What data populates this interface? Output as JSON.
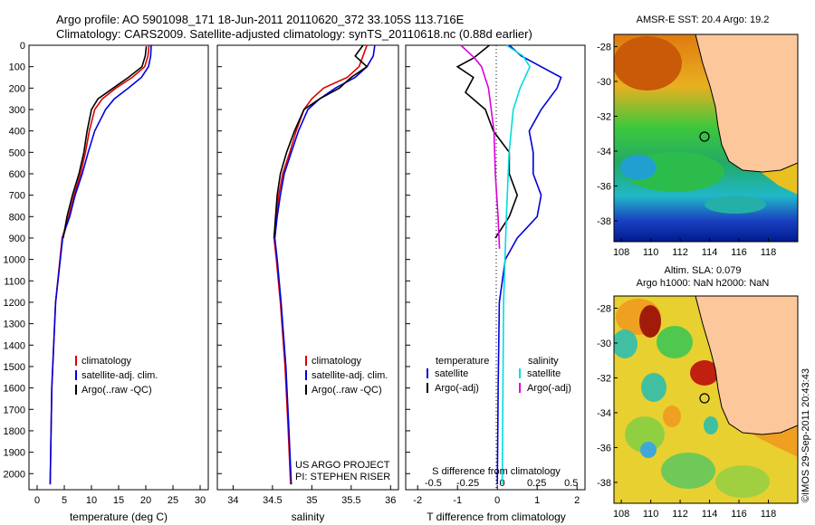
{
  "header": {
    "line1": "Argo profile: AO 5901098_171 18-Jun-2011 20110620_372 33.105S 113.716E",
    "line2": "Climatology: CARS2009. Satellite-adjusted climatology: synTS_20110618.nc (0.88d earlier)"
  },
  "colors": {
    "climatology": "#dd0000",
    "satellite": "#0000dd",
    "argo": "#000000",
    "salinity_sat": "#00dddd",
    "salinity_argo": "#dd00dd",
    "land": "#fcc89b"
  },
  "chart_data": [
    {
      "type": "line",
      "xlabel": "temperature (deg C)",
      "ylabel": "",
      "xlim": [
        -1.5,
        31.5
      ],
      "ylim": [
        2075,
        0
      ],
      "xticks": [
        "0",
        "5",
        "10",
        "15",
        "20",
        "25",
        "30"
      ],
      "yticks": [
        "0",
        "100",
        "200",
        "300",
        "400",
        "500",
        "600",
        "700",
        "800",
        "900",
        "1000",
        "1100",
        "1200",
        "1300",
        "1400",
        "1500",
        "1600",
        "1700",
        "1800",
        "1900",
        "2000"
      ],
      "legend": [
        "climatology",
        "satellite-adj. clim.",
        "Argo(..raw -QC)"
      ],
      "series": [
        {
          "name": "climatology",
          "x": [
            20.6,
            20.4,
            19.8,
            17.5,
            14.5,
            12.0,
            10.6,
            9.6,
            8.9,
            8.0,
            6.8,
            5.8,
            5.2,
            4.6,
            3.4,
            2.7,
            2.5,
            2.4
          ],
          "y": [
            0,
            50,
            100,
            150,
            200,
            250,
            300,
            400,
            500,
            600,
            700,
            800,
            850,
            900,
            1200,
            1600,
            1900,
            2050
          ]
        },
        {
          "name": "satellite-adj. clim.",
          "x": [
            21.0,
            20.9,
            20.5,
            19.2,
            16.8,
            14.2,
            12.6,
            10.6,
            9.4,
            8.3,
            7.0,
            6.0,
            5.3,
            4.7,
            3.4,
            2.7,
            2.5,
            2.4
          ],
          "y": [
            0,
            50,
            100,
            150,
            200,
            250,
            300,
            400,
            500,
            600,
            700,
            800,
            850,
            900,
            1200,
            1600,
            1900,
            2050
          ]
        },
        {
          "name": "Argo(..raw -QC)",
          "x": [
            20.1,
            19.9,
            19.3,
            16.8,
            14.0,
            11.2,
            10.0,
            9.2,
            8.6,
            7.7,
            6.5,
            5.5,
            4.8
          ],
          "y": [
            5,
            50,
            100,
            150,
            200,
            250,
            300,
            400,
            500,
            600,
            700,
            800,
            900
          ]
        }
      ]
    },
    {
      "type": "line",
      "xlabel": "salinity",
      "ylabel": "",
      "xlim": [
        33.8,
        36.1
      ],
      "ylim": [
        2075,
        0
      ],
      "xticks": [
        "34",
        "34.5",
        "35",
        "35.5",
        "36"
      ],
      "legend": [
        "climatology",
        "satellite-adj. clim.",
        "Argo(..raw -QC)"
      ],
      "annotations": [
        "US ARGO PROJECT",
        "PI: STEPHEN RISER"
      ],
      "series": [
        {
          "name": "climatology",
          "x": [
            35.7,
            35.65,
            35.6,
            35.45,
            35.15,
            35.0,
            34.9,
            34.8,
            34.72,
            34.63,
            34.58,
            34.55,
            34.52,
            34.55,
            34.6,
            34.66,
            34.7,
            34.73
          ],
          "y": [
            0,
            50,
            100,
            150,
            200,
            250,
            300,
            400,
            500,
            600,
            700,
            800,
            900,
            1000,
            1200,
            1500,
            1800,
            2050
          ]
        },
        {
          "name": "satellite-adj. clim.",
          "x": [
            35.8,
            35.78,
            35.7,
            35.55,
            35.3,
            35.1,
            34.95,
            34.83,
            34.74,
            34.65,
            34.6,
            34.56,
            34.53,
            34.56,
            34.61,
            34.67,
            34.71,
            34.74
          ],
          "y": [
            0,
            50,
            100,
            150,
            200,
            250,
            300,
            400,
            500,
            600,
            700,
            800,
            900,
            1000,
            1200,
            1500,
            1800,
            2050
          ]
        },
        {
          "name": "Argo(..raw -QC)",
          "x": [
            35.65,
            35.55,
            35.7,
            35.5,
            35.35,
            35.1,
            34.9,
            34.78,
            34.68,
            34.6,
            34.56,
            34.54,
            34.52
          ],
          "y": [
            0,
            50,
            100,
            150,
            200,
            250,
            300,
            400,
            500,
            600,
            700,
            800,
            900
          ]
        }
      ]
    },
    {
      "type": "line",
      "xlabel": "T difference from climatology",
      "xlabel2": "S difference from climatology",
      "xlim": [
        -2.3,
        2.2
      ],
      "xlim_S": [
        -0.7,
        0.6
      ],
      "ylim": [
        2075,
        0
      ],
      "xticks": [
        "-2",
        "-1",
        "0",
        "1",
        "2"
      ],
      "xticks_S": [
        "-0.5",
        "-0.25",
        "0",
        "0.25",
        "0.5"
      ],
      "legend": {
        "temperature": [
          "satellite",
          "Argo(-adj)"
        ],
        "salinity": [
          "satellite",
          "Argo(-adj)"
        ],
        "temperature_title": "temperature",
        "salinity_title": "salinity"
      },
      "series": [
        {
          "name": "satellite",
          "quantity": "temperature",
          "x": [
            0.3,
            0.6,
            1.1,
            1.6,
            1.5,
            1.1,
            0.8,
            0.9,
            0.9,
            1.1,
            1.0,
            0.5,
            0.2,
            0.05,
            0.02,
            0.0
          ],
          "y": [
            0,
            50,
            100,
            150,
            200,
            300,
            400,
            500,
            600,
            700,
            800,
            900,
            1000,
            1200,
            1600,
            2050
          ]
        },
        {
          "name": "Argo(-adj)",
          "quantity": "temperature",
          "x": [
            -0.2,
            -0.6,
            -1.0,
            -0.6,
            -0.8,
            -0.3,
            -0.1,
            0.3,
            0.3,
            0.5,
            0.3,
            -0.05
          ],
          "y": [
            0,
            60,
            100,
            150,
            220,
            300,
            400,
            500,
            600,
            700,
            800,
            900
          ]
        },
        {
          "name": "satellite",
          "quantity": "salinity",
          "x": [
            0.03,
            0.15,
            0.2,
            0.13,
            0.08,
            0.05,
            0.03,
            0.01,
            0.0
          ],
          "y": [
            0,
            50,
            100,
            200,
            300,
            500,
            800,
            1200,
            2050
          ]
        },
        {
          "name": "Argo(-adj)",
          "quantity": "salinity",
          "x": [
            -0.3,
            -0.2,
            -0.15,
            -0.1,
            -0.06,
            -0.05,
            -0.03,
            -0.02
          ],
          "y": [
            0,
            60,
            100,
            200,
            400,
            600,
            800,
            950
          ]
        }
      ]
    },
    {
      "type": "heatmap",
      "title": "AMSR-E SST: 20.4  Argo: 19.2",
      "xticks": [
        "108",
        "110",
        "112",
        "114",
        "116",
        "118"
      ],
      "yticks": [
        "-28",
        "-30",
        "-32",
        "-34",
        "-36",
        "-38"
      ],
      "xlim": [
        107.5,
        120
      ],
      "ylim": [
        -39.2,
        -27.3
      ],
      "argo_position": {
        "lon": 113.716,
        "lat": -33.105
      }
    },
    {
      "type": "heatmap",
      "title": "Altim. SLA: 0.079",
      "subtitle": "Argo h1000: NaN h2000: NaN",
      "xticks": [
        "108",
        "110",
        "112",
        "114",
        "116",
        "118"
      ],
      "yticks": [
        "-28",
        "-30",
        "-32",
        "-34",
        "-36",
        "-38"
      ],
      "xlim": [
        107.5,
        120
      ],
      "ylim": [
        -39.2,
        -27.3
      ],
      "argo_position": {
        "lon": 113.716,
        "lat": -33.105
      }
    }
  ],
  "credit": "©IMOS 29-Sep-2011 20:43:43"
}
